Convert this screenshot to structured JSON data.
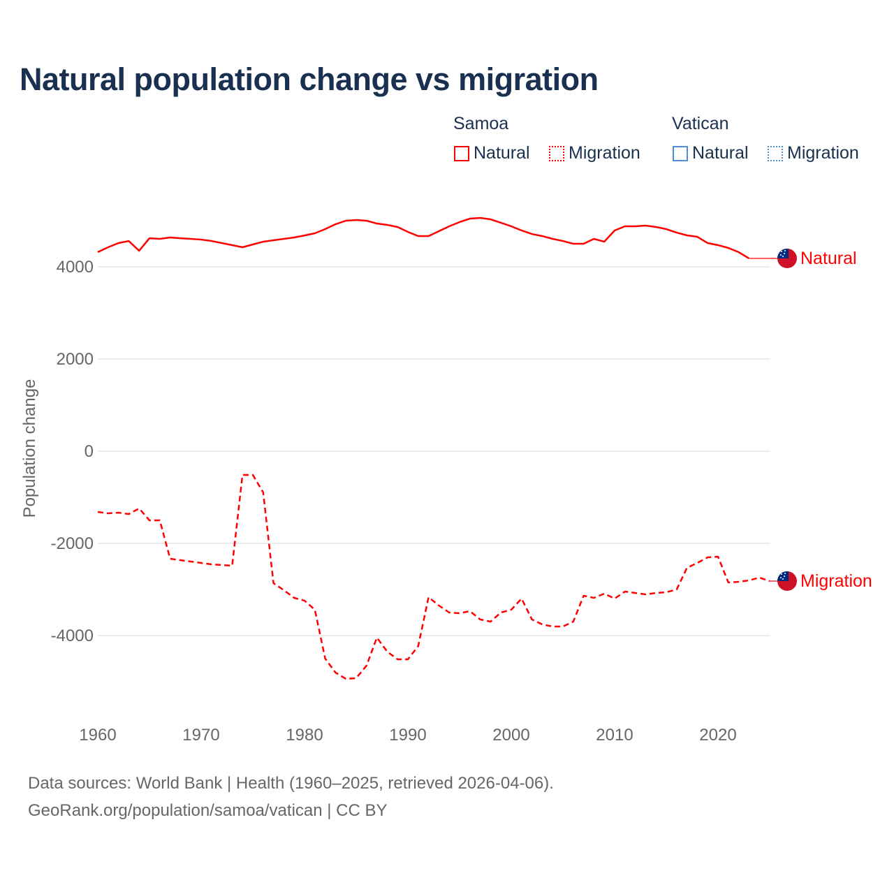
{
  "title": "Natural population change vs migration",
  "legend": {
    "groups": [
      {
        "name": "Samoa",
        "color": "#ff0000",
        "items": [
          "Natural",
          "Migration"
        ]
      },
      {
        "name": "Vatican",
        "color": "#4a90d9",
        "items": [
          "Natural",
          "Migration"
        ]
      }
    ]
  },
  "footer": {
    "line1": "Data sources: World Bank | Health (1960–2025, retrieved 2026-04-06).",
    "line2": "GeoRank.org/population/samoa/vatican | CC BY"
  },
  "chart_data": {
    "type": "line",
    "title": "Natural population change vs migration",
    "xlabel": "",
    "ylabel": "Population change",
    "xlim": [
      1960,
      2025
    ],
    "ylim": [
      -5500,
      5300
    ],
    "xticks": [
      1960,
      1970,
      1980,
      1990,
      2000,
      2010,
      2020
    ],
    "yticks": [
      4000,
      2000,
      0,
      -2000,
      -4000
    ],
    "ytick_labels": [
      "4000",
      "2000",
      "0",
      "-2000",
      "-4000"
    ],
    "grid": true,
    "legend_position": "top-right",
    "series": [
      {
        "name": "Samoa Natural",
        "end_label": "Natural",
        "country": "Samoa",
        "style": "solid",
        "color": "#ff0000",
        "x": [
          1960,
          1961,
          1962,
          1963,
          1964,
          1965,
          1966,
          1967,
          1968,
          1969,
          1970,
          1971,
          1972,
          1973,
          1974,
          1975,
          1976,
          1977,
          1978,
          1979,
          1980,
          1981,
          1982,
          1983,
          1984,
          1985,
          1986,
          1987,
          1988,
          1989,
          1990,
          1991,
          1992,
          1993,
          1994,
          1995,
          1996,
          1997,
          1998,
          1999,
          2000,
          2001,
          2002,
          2003,
          2004,
          2005,
          2006,
          2007,
          2008,
          2009,
          2010,
          2011,
          2012,
          2013,
          2014,
          2015,
          2016,
          2017,
          2018,
          2019,
          2020,
          2021,
          2022,
          2023
        ],
        "values": [
          4318,
          4424,
          4515,
          4560,
          4348,
          4620,
          4606,
          4636,
          4620,
          4606,
          4590,
          4560,
          4515,
          4470,
          4424,
          4485,
          4545,
          4575,
          4606,
          4636,
          4680,
          4727,
          4818,
          4924,
          5000,
          5015,
          5000,
          4939,
          4909,
          4864,
          4757,
          4667,
          4667,
          4773,
          4879,
          4970,
          5045,
          5060,
          5030,
          4955,
          4879,
          4788,
          4712,
          4667,
          4606,
          4560,
          4500,
          4500,
          4606,
          4545,
          4788,
          4879,
          4879,
          4894,
          4864,
          4818,
          4742,
          4682,
          4651,
          4515,
          4470,
          4409,
          4318,
          4182
        ]
      },
      {
        "name": "Samoa Migration",
        "end_label": "Migration",
        "country": "Samoa",
        "style": "dashed",
        "color": "#ff0000",
        "x": [
          1960,
          1961,
          1962,
          1963,
          1964,
          1965,
          1966,
          1967,
          1968,
          1969,
          1970,
          1971,
          1972,
          1973,
          1974,
          1975,
          1976,
          1977,
          1978,
          1979,
          1980,
          1981,
          1982,
          1983,
          1984,
          1985,
          1986,
          1987,
          1988,
          1989,
          1990,
          1991,
          1992,
          1993,
          1994,
          1995,
          1996,
          1997,
          1998,
          1999,
          2000,
          2001,
          2002,
          2003,
          2004,
          2005,
          2006,
          2007,
          2008,
          2009,
          2010,
          2011,
          2012,
          2013,
          2014,
          2015,
          2016,
          2017,
          2018,
          2019,
          2020,
          2021,
          2022,
          2023,
          2024,
          2025
        ],
        "values": [
          -1318,
          -1348,
          -1333,
          -1364,
          -1242,
          -1500,
          -1500,
          -2333,
          -2364,
          -2394,
          -2424,
          -2455,
          -2470,
          -2485,
          -515,
          -515,
          -894,
          -2864,
          -3015,
          -3182,
          -3242,
          -3439,
          -4500,
          -4803,
          -4939,
          -4924,
          -4651,
          -4045,
          -4348,
          -4515,
          -4515,
          -4227,
          -3167,
          -3348,
          -3500,
          -3515,
          -3470,
          -3651,
          -3697,
          -3500,
          -3439,
          -3197,
          -3651,
          -3757,
          -3803,
          -3803,
          -3697,
          -3136,
          -3182,
          -3091,
          -3197,
          -3045,
          -3076,
          -3106,
          -3076,
          -3060,
          -3000,
          -2530,
          -2424,
          -2303,
          -2288,
          -2848,
          -2833,
          -2803,
          -2742,
          -2818
        ]
      }
    ]
  }
}
